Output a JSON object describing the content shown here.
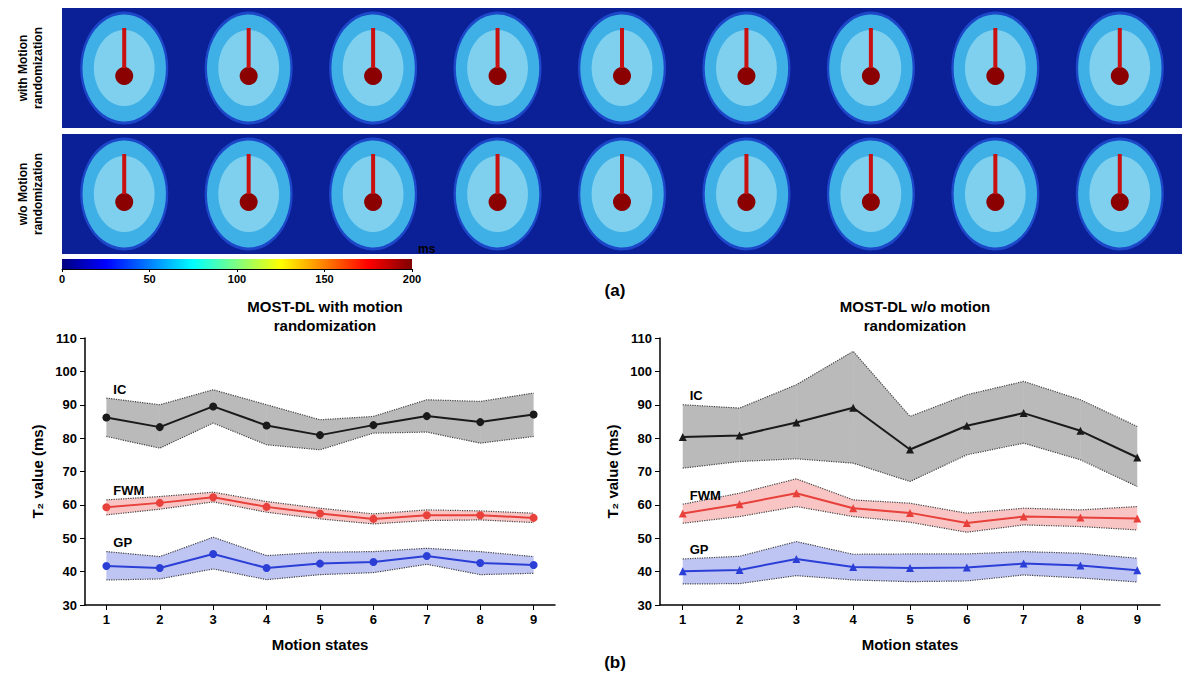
{
  "panel_labels": [
    "(a)",
    "(b)"
  ],
  "image_rows": [
    "with Motion randomization",
    "w/o Motion randomization"
  ],
  "colorbar": {
    "range": [
      0,
      200
    ],
    "ticks": [
      0,
      50,
      100,
      150,
      200
    ],
    "unit": "ms"
  },
  "chart_data": [
    {
      "type": "line",
      "title": "MOST-DL with motion randomization",
      "x_label": "Motion states",
      "y_label": "T₂ value (ms)",
      "x": [
        1,
        2,
        3,
        4,
        5,
        6,
        7,
        8,
        9
      ],
      "xlim": [
        0.6,
        9.4
      ],
      "xticks": [
        1,
        2,
        3,
        4,
        5,
        6,
        7,
        8,
        9
      ],
      "ylim": [
        30,
        110
      ],
      "yticks": [
        30,
        40,
        50,
        60,
        70,
        80,
        90,
        100,
        110
      ],
      "grid": false,
      "marker": "circle",
      "series": [
        {
          "name": "IC",
          "color": "#1a1a1a",
          "values": [
            86.2,
            83.3,
            89.5,
            83.8,
            80.9,
            83.9,
            86.6,
            84.8,
            87.1
          ],
          "lower": [
            80.5,
            77,
            84.5,
            78,
            76.5,
            81.5,
            81.8,
            78.5,
            80.5
          ],
          "upper": [
            92,
            90,
            94.5,
            90,
            85.5,
            86.5,
            91.5,
            91,
            93.5
          ]
        },
        {
          "name": "FWM",
          "color": "#e8403a",
          "values": [
            59.3,
            60.6,
            62.3,
            59.4,
            57.4,
            55.8,
            56.9,
            56.9,
            56.1
          ],
          "lower": [
            57,
            58.7,
            60.9,
            57.8,
            55.8,
            54.3,
            55.3,
            55.5,
            54.7
          ],
          "upper": [
            61.5,
            62.5,
            63.8,
            61,
            59,
            57.3,
            58.5,
            58.2,
            57.5
          ]
        },
        {
          "name": "GP",
          "color": "#2b3fd6",
          "values": [
            41.7,
            41.1,
            45.3,
            41.1,
            42.4,
            42.9,
            44.7,
            42.6,
            42
          ],
          "lower": [
            37.5,
            37.8,
            40.8,
            37.6,
            39.1,
            39.7,
            42.2,
            39.1,
            39.5
          ],
          "upper": [
            46,
            44.5,
            50.3,
            44.8,
            45.8,
            46,
            47,
            46,
            44.5
          ]
        }
      ]
    },
    {
      "type": "line",
      "title": "MOST-DL w/o motion randomization",
      "x_label": "Motion states",
      "y_label": "T₂ value (ms)",
      "x": [
        1,
        2,
        3,
        4,
        5,
        6,
        7,
        8,
        9
      ],
      "xlim": [
        0.6,
        9.4
      ],
      "xticks": [
        1,
        2,
        3,
        4,
        5,
        6,
        7,
        8,
        9
      ],
      "ylim": [
        30,
        110
      ],
      "yticks": [
        30,
        40,
        50,
        60,
        70,
        80,
        90,
        100,
        110
      ],
      "grid": false,
      "marker": "triangle",
      "series": [
        {
          "name": "IC",
          "color": "#1a1a1a",
          "values": [
            80.3,
            80.8,
            84.7,
            89.1,
            76.6,
            83.7,
            87.5,
            82.2,
            74.2
          ],
          "lower": [
            71,
            73,
            73.8,
            72.5,
            67,
            75,
            78.5,
            73.5,
            65.5
          ],
          "upper": [
            90,
            89,
            96,
            106,
            86.5,
            93,
            97,
            91.5,
            83.5
          ]
        },
        {
          "name": "FWM",
          "color": "#e8403a",
          "values": [
            57.4,
            60.2,
            63.5,
            59,
            57.6,
            54.6,
            56.5,
            56.2,
            55.9
          ],
          "lower": [
            54.5,
            56.5,
            59.5,
            56.5,
            54.8,
            51.8,
            54,
            53.5,
            52.5
          ],
          "upper": [
            60.2,
            63.5,
            67.8,
            61.5,
            60.5,
            57.5,
            59,
            58.5,
            59.5
          ]
        },
        {
          "name": "GP",
          "color": "#2b3fd6",
          "values": [
            40.1,
            40.5,
            43.8,
            41.4,
            41.1,
            41.2,
            42.4,
            41.8,
            40.4
          ],
          "lower": [
            36.3,
            36.4,
            38.8,
            37.5,
            37,
            37.2,
            39,
            38.1,
            36.9
          ],
          "upper": [
            43.8,
            44.6,
            49,
            45.2,
            45.3,
            45.3,
            46,
            45.5,
            44
          ]
        }
      ]
    }
  ]
}
